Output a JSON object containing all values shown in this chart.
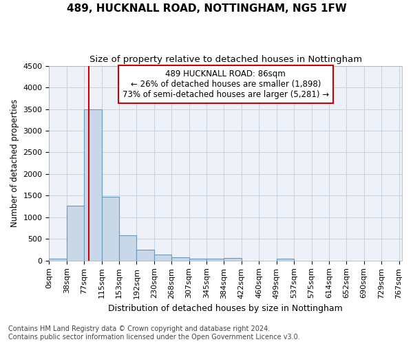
{
  "title1": "489, HUCKNALL ROAD, NOTTINGHAM, NG5 1FW",
  "title2": "Size of property relative to detached houses in Nottingham",
  "xlabel": "Distribution of detached houses by size in Nottingham",
  "ylabel": "Number of detached properties",
  "bar_values": [
    40,
    1275,
    3500,
    1480,
    590,
    255,
    140,
    75,
    50,
    40,
    55,
    0,
    0,
    40,
    0,
    0,
    0,
    0,
    0,
    0
  ],
  "bin_labels": [
    "0sqm",
    "38sqm",
    "77sqm",
    "115sqm",
    "153sqm",
    "192sqm",
    "230sqm",
    "268sqm",
    "307sqm",
    "345sqm",
    "384sqm",
    "422sqm",
    "460sqm",
    "499sqm",
    "537sqm",
    "575sqm",
    "614sqm",
    "652sqm",
    "690sqm",
    "729sqm",
    "767sqm"
  ],
  "bar_color": "#c8d8e8",
  "bar_edge_color": "#6699bb",
  "grid_color": "#c8d4e4",
  "background_color": "#eef2f8",
  "vline_x": 86,
  "vline_color": "#cc0000",
  "annotation_text": "489 HUCKNALL ROAD: 86sqm\n← 26% of detached houses are smaller (1,898)\n73% of semi-detached houses are larger (5,281) →",
  "annotation_box_color": "#ffffff",
  "annotation_box_edge": "#cc0000",
  "ylim": [
    0,
    4500
  ],
  "yticks": [
    0,
    500,
    1000,
    1500,
    2000,
    2500,
    3000,
    3500,
    4000,
    4500
  ],
  "footer_text": "Contains HM Land Registry data © Crown copyright and database right 2024.\nContains public sector information licensed under the Open Government Licence v3.0.",
  "title1_fontsize": 11,
  "title2_fontsize": 9.5,
  "xlabel_fontsize": 9,
  "ylabel_fontsize": 8.5,
  "tick_fontsize": 8,
  "footer_fontsize": 7,
  "ann_fontsize": 8.5
}
